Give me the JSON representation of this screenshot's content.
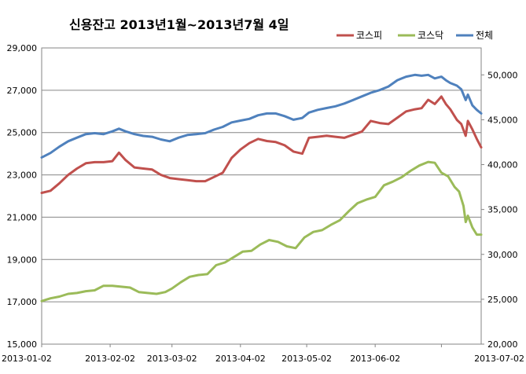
{
  "chart_data": {
    "type": "line",
    "title": "신용잔고 2013년1월~2013년7월 4일",
    "x_labels": [
      "2013-01-02",
      "2013-02-02",
      "2013-03-02",
      "2013-04-02",
      "2013-05-02",
      "2013-06-02",
      "2013-07-02"
    ],
    "y_left": {
      "min": 15000,
      "max": 29000,
      "ticks": [
        "15,000",
        "17,000",
        "19,000",
        "21,000",
        "23,000",
        "25,000",
        "27,000",
        "29,000"
      ]
    },
    "y_right": {
      "min": 20000,
      "max": 53000,
      "ticks": [
        "20,000",
        "25,000",
        "30,000",
        "35,000",
        "40,000",
        "45,000",
        "50,000"
      ]
    },
    "grid": "horizontal",
    "legend_position": "top-right",
    "series": [
      {
        "name": "코스피",
        "axis": "left",
        "color": "#c0504d",
        "points": [
          [
            "2013-01-02",
            22150
          ],
          [
            "2013-01-06",
            22250
          ],
          [
            "2013-01-10",
            22600
          ],
          [
            "2013-01-14",
            23000
          ],
          [
            "2013-01-18",
            23300
          ],
          [
            "2013-01-22",
            23550
          ],
          [
            "2013-01-26",
            23600
          ],
          [
            "2013-01-30",
            23600
          ],
          [
            "2013-02-03",
            23650
          ],
          [
            "2013-02-06",
            24050
          ],
          [
            "2013-02-09",
            23700
          ],
          [
            "2013-02-13",
            23350
          ],
          [
            "2013-02-17",
            23300
          ],
          [
            "2013-02-21",
            23250
          ],
          [
            "2013-02-25",
            23000
          ],
          [
            "2013-03-01",
            22850
          ],
          [
            "2013-03-05",
            22800
          ],
          [
            "2013-03-09",
            22750
          ],
          [
            "2013-03-13",
            22700
          ],
          [
            "2013-03-17",
            22700
          ],
          [
            "2013-03-21",
            22900
          ],
          [
            "2013-03-25",
            23100
          ],
          [
            "2013-03-29",
            23800
          ],
          [
            "2013-04-02",
            24200
          ],
          [
            "2013-04-06",
            24500
          ],
          [
            "2013-04-10",
            24700
          ],
          [
            "2013-04-14",
            24600
          ],
          [
            "2013-04-18",
            24550
          ],
          [
            "2013-04-22",
            24400
          ],
          [
            "2013-04-26",
            24100
          ],
          [
            "2013-04-30",
            24000
          ],
          [
            "2013-05-03",
            24750
          ],
          [
            "2013-05-07",
            24800
          ],
          [
            "2013-05-11",
            24850
          ],
          [
            "2013-05-15",
            24800
          ],
          [
            "2013-05-19",
            24750
          ],
          [
            "2013-05-23",
            24900
          ],
          [
            "2013-05-27",
            25050
          ],
          [
            "2013-05-31",
            25550
          ],
          [
            "2013-06-04",
            25450
          ],
          [
            "2013-06-08",
            25400
          ],
          [
            "2013-06-12",
            25700
          ],
          [
            "2013-06-16",
            26000
          ],
          [
            "2013-06-20",
            26100
          ],
          [
            "2013-06-23",
            26150
          ],
          [
            "2013-06-26",
            26550
          ],
          [
            "2013-06-29",
            26350
          ],
          [
            "2013-07-02",
            26700
          ],
          [
            "2013-07-04",
            26350
          ],
          [
            "2013-07-06",
            26100
          ],
          [
            "2013-07-09",
            25600
          ],
          [
            "2013-07-11",
            25400
          ],
          [
            "2013-07-13",
            24850
          ],
          [
            "2013-07-14",
            25550
          ],
          [
            "2013-07-16",
            25150
          ],
          [
            "2013-07-18",
            24700
          ],
          [
            "2013-07-20",
            24300
          ]
        ]
      },
      {
        "name": "코스닥",
        "axis": "right",
        "color": "#9bbb59",
        "points": [
          [
            "2013-01-02",
            24800
          ],
          [
            "2013-01-06",
            25100
          ],
          [
            "2013-01-10",
            25300
          ],
          [
            "2013-01-14",
            25600
          ],
          [
            "2013-01-18",
            25700
          ],
          [
            "2013-01-22",
            25900
          ],
          [
            "2013-01-26",
            26000
          ],
          [
            "2013-01-30",
            26500
          ],
          [
            "2013-02-03",
            26500
          ],
          [
            "2013-02-07",
            26400
          ],
          [
            "2013-02-11",
            26300
          ],
          [
            "2013-02-15",
            25800
          ],
          [
            "2013-02-19",
            25700
          ],
          [
            "2013-02-23",
            25600
          ],
          [
            "2013-02-27",
            25800
          ],
          [
            "2013-03-02",
            26200
          ],
          [
            "2013-03-06",
            26900
          ],
          [
            "2013-03-10",
            27500
          ],
          [
            "2013-03-14",
            27700
          ],
          [
            "2013-03-18",
            27800
          ],
          [
            "2013-03-22",
            28800
          ],
          [
            "2013-03-26",
            29100
          ],
          [
            "2013-03-30",
            29700
          ],
          [
            "2013-04-03",
            30300
          ],
          [
            "2013-04-07",
            30400
          ],
          [
            "2013-04-11",
            31100
          ],
          [
            "2013-04-15",
            31600
          ],
          [
            "2013-04-19",
            31400
          ],
          [
            "2013-04-23",
            30900
          ],
          [
            "2013-04-27",
            30700
          ],
          [
            "2013-05-01",
            31900
          ],
          [
            "2013-05-05",
            32500
          ],
          [
            "2013-05-09",
            32700
          ],
          [
            "2013-05-13",
            33300
          ],
          [
            "2013-05-17",
            33800
          ],
          [
            "2013-05-21",
            34800
          ],
          [
            "2013-05-25",
            35700
          ],
          [
            "2013-05-29",
            36100
          ],
          [
            "2013-06-02",
            36400
          ],
          [
            "2013-06-06",
            37700
          ],
          [
            "2013-06-10",
            38100
          ],
          [
            "2013-06-14",
            38600
          ],
          [
            "2013-06-18",
            39300
          ],
          [
            "2013-06-22",
            39900
          ],
          [
            "2013-06-26",
            40300
          ],
          [
            "2013-06-29",
            40200
          ],
          [
            "2013-07-02",
            39100
          ],
          [
            "2013-07-05",
            38700
          ],
          [
            "2013-07-08",
            37500
          ],
          [
            "2013-07-10",
            37000
          ],
          [
            "2013-07-12",
            35400
          ],
          [
            "2013-07-13",
            33600
          ],
          [
            "2013-07-14",
            34300
          ],
          [
            "2013-07-16",
            33000
          ],
          [
            "2013-07-18",
            32200
          ],
          [
            "2013-07-20",
            32200
          ]
        ]
      },
      {
        "name": "전체",
        "axis": "right",
        "color": "#4f81bd",
        "points": [
          [
            "2013-01-02",
            40800
          ],
          [
            "2013-01-06",
            41300
          ],
          [
            "2013-01-10",
            42000
          ],
          [
            "2013-01-14",
            42600
          ],
          [
            "2013-01-18",
            43000
          ],
          [
            "2013-01-22",
            43400
          ],
          [
            "2013-01-26",
            43500
          ],
          [
            "2013-01-30",
            43400
          ],
          [
            "2013-02-03",
            43700
          ],
          [
            "2013-02-06",
            44000
          ],
          [
            "2013-02-09",
            43700
          ],
          [
            "2013-02-13",
            43400
          ],
          [
            "2013-02-17",
            43200
          ],
          [
            "2013-02-21",
            43100
          ],
          [
            "2013-02-25",
            42800
          ],
          [
            "2013-03-01",
            42600
          ],
          [
            "2013-03-05",
            43000
          ],
          [
            "2013-03-09",
            43300
          ],
          [
            "2013-03-13",
            43400
          ],
          [
            "2013-03-17",
            43500
          ],
          [
            "2013-03-21",
            43900
          ],
          [
            "2013-03-25",
            44200
          ],
          [
            "2013-03-29",
            44700
          ],
          [
            "2013-04-02",
            44900
          ],
          [
            "2013-04-06",
            45100
          ],
          [
            "2013-04-10",
            45500
          ],
          [
            "2013-04-14",
            45700
          ],
          [
            "2013-04-18",
            45700
          ],
          [
            "2013-04-22",
            45400
          ],
          [
            "2013-04-26",
            45000
          ],
          [
            "2013-04-30",
            45200
          ],
          [
            "2013-05-03",
            45800
          ],
          [
            "2013-05-07",
            46100
          ],
          [
            "2013-05-11",
            46300
          ],
          [
            "2013-05-15",
            46500
          ],
          [
            "2013-05-19",
            46800
          ],
          [
            "2013-05-23",
            47200
          ],
          [
            "2013-05-27",
            47600
          ],
          [
            "2013-05-31",
            48000
          ],
          [
            "2013-06-04",
            48300
          ],
          [
            "2013-06-08",
            48700
          ],
          [
            "2013-06-12",
            49400
          ],
          [
            "2013-06-16",
            49800
          ],
          [
            "2013-06-20",
            50000
          ],
          [
            "2013-06-23",
            49900
          ],
          [
            "2013-06-26",
            50000
          ],
          [
            "2013-06-29",
            49600
          ],
          [
            "2013-07-02",
            49800
          ],
          [
            "2013-07-04",
            49400
          ],
          [
            "2013-07-06",
            49100
          ],
          [
            "2013-07-09",
            48800
          ],
          [
            "2013-07-11",
            48400
          ],
          [
            "2013-07-13",
            47200
          ],
          [
            "2013-07-14",
            47800
          ],
          [
            "2013-07-16",
            46600
          ],
          [
            "2013-07-18",
            46100
          ],
          [
            "2013-07-20",
            45700
          ]
        ]
      }
    ]
  }
}
